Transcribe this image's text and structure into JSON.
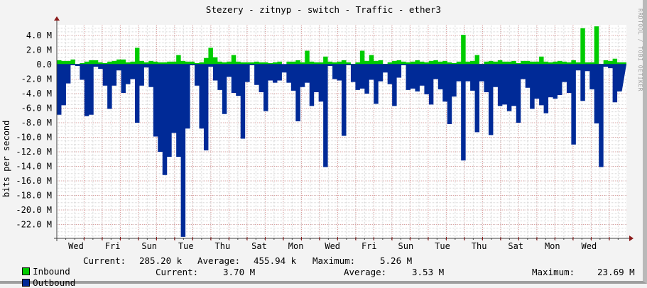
{
  "title": "Stezery - zitnyp - switch - Traffic - ether3",
  "watermark": "RRDTOOL / TOBI OETIKER",
  "colors": {
    "inbound": "#00cc00",
    "outbound": "#002a97",
    "grid_major": "#e0a0a0",
    "grid_minor": "#d8d8d8",
    "axis": "#404040",
    "arrow": "#8b1a1a",
    "background": "#f3f3f3",
    "plot_bg": "#ffffff"
  },
  "legend": {
    "inbound": {
      "label": "Inbound",
      "current_label": "Current:",
      "current": "285.20 k",
      "average_label": "Average:",
      "average": "455.94 k",
      "maximum_label": "Maximum:",
      "maximum": "5.26 M"
    },
    "outbound": {
      "label": "Outbound",
      "current_label": "Current:",
      "current": "3.70 M",
      "average_label": "Average:",
      "average": "3.53 M",
      "maximum_label": "Maximum:",
      "maximum": "23.69 M"
    }
  },
  "chart_data": {
    "type": "area",
    "title": "Stezery - zitnyp - switch - Traffic - ether3",
    "xlabel": "",
    "ylabel": "bits per second",
    "ylim": [
      -23.5,
      5.5
    ],
    "y_ticks": [
      "4.0 M",
      "2.0 M",
      "0.0",
      "-2.0 M",
      "-4.0 M",
      "-6.0 M",
      "-8.0 M",
      "-10.0 M",
      "-12.0 M",
      "-14.0 M",
      "-16.0 M",
      "-18.0 M",
      "-20.0 M",
      "-22.0 M"
    ],
    "y_tick_values": [
      4,
      2,
      0,
      -2,
      -4,
      -6,
      -8,
      -10,
      -12,
      -14,
      -16,
      -18,
      -20,
      -22
    ],
    "x_ticks": [
      "Wed",
      "Fri",
      "Sun",
      "Tue",
      "Thu",
      "Sat",
      "Mon",
      "Wed",
      "Fri",
      "Sun",
      "Tue",
      "Thu",
      "Sat",
      "Mon",
      "Wed"
    ],
    "grid": true,
    "legend_position": "bottom",
    "units": "M bits/s",
    "series": [
      {
        "name": "Inbound",
        "color": "#00cc00",
        "values": [
          0.6,
          0.5,
          0.5,
          0.7,
          0.1,
          0.2,
          0.4,
          0.6,
          0.6,
          0.3,
          0.2,
          0.4,
          0.5,
          0.7,
          0.7,
          0.3,
          0.4,
          2.3,
          0.5,
          0.3,
          0.5,
          0.4,
          0.3,
          0.3,
          0.4,
          0.4,
          1.3,
          0.5,
          0.4,
          0.4,
          0.2,
          0.3,
          0.9,
          2.3,
          1.0,
          0.4,
          0.3,
          0.4,
          1.3,
          0.4,
          0.3,
          0.3,
          0.3,
          0.4,
          0.3,
          0.3,
          0.2,
          0.3,
          0.4,
          0.0,
          0.4,
          0.4,
          0.6,
          0.3,
          1.9,
          0.4,
          0.3,
          0.3,
          1.1,
          0.4,
          0.3,
          0.4,
          0.6,
          0.3,
          0.1,
          0.3,
          1.9,
          0.5,
          1.3,
          0.5,
          0.6,
          0.1,
          0.3,
          0.5,
          0.6,
          0.4,
          0.3,
          0.4,
          0.6,
          0.4,
          0.3,
          0.5,
          0.6,
          0.4,
          0.5,
          0.3,
          0.2,
          0.4,
          4.1,
          0.4,
          0.5,
          1.3,
          0.1,
          0.4,
          0.5,
          0.4,
          0.6,
          0.4,
          0.4,
          0.5,
          0.2,
          0.5,
          0.5,
          0.4,
          0.4,
          1.1,
          0.4,
          0.3,
          0.4,
          0.5,
          0.4,
          0.3,
          0.6,
          0.3,
          5.0,
          0.3,
          0.3,
          5.26,
          0.1,
          0.6,
          0.5,
          0.8,
          0.3,
          0.3
        ],
        "note": "approximate per-step samples read from pixels"
      },
      {
        "name": "Outbound",
        "color": "#002a97",
        "values": [
          -6.9,
          -5.6,
          -2.6,
          -0.1,
          -0.2,
          -2.1,
          -7.1,
          -6.9,
          -0.3,
          -0.6,
          -2.9,
          -6.1,
          -2.9,
          -0.8,
          -3.9,
          -2.7,
          -2.0,
          -8.0,
          -2.9,
          -0.4,
          -3.1,
          -9.9,
          -12.0,
          -15.2,
          -12.7,
          -9.4,
          -12.7,
          -23.7,
          -8.8,
          -0.1,
          -2.9,
          -8.8,
          -11.8,
          -0.3,
          -2.2,
          -3.5,
          -6.8,
          -1.7,
          -3.9,
          -4.3,
          -10.2,
          -2.4,
          -0.1,
          -2.8,
          -3.8,
          -6.4,
          -2.2,
          -2.5,
          -2.2,
          -1.1,
          -2.5,
          -3.6,
          -7.8,
          -3.1,
          -2.5,
          -5.7,
          -3.8,
          -5.1,
          -14.1,
          -0.2,
          -2.0,
          -2.2,
          -9.8,
          -0.1,
          -2.4,
          -3.5,
          -3.3,
          -4.0,
          -2.1,
          -5.4,
          -2.3,
          -1.1,
          -2.7,
          -5.7,
          -1.8,
          -0.1,
          -3.5,
          -3.3,
          -3.7,
          -2.9,
          -4.1,
          -5.5,
          -2.0,
          -3.4,
          -5.1,
          -8.2,
          -4.4,
          -2.3,
          -13.2,
          -2.3,
          -3.6,
          -9.3,
          -2.3,
          -3.8,
          -9.7,
          -3.1,
          -5.7,
          -5.5,
          -6.4,
          -5.7,
          -8.0,
          -2.0,
          -3.2,
          -6.1,
          -4.7,
          -5.6,
          -6.7,
          -4.5,
          -4.7,
          -4.2,
          -2.4,
          -3.9,
          -11.0,
          -0.8,
          -5.0,
          -0.9,
          -3.4,
          -8.1,
          -14.1,
          -0.3,
          -0.5,
          -5.2,
          -3.7
        ],
        "note": "outbound plotted as negative (mirrored below zero)"
      }
    ],
    "summary": {
      "inbound": {
        "current": 285200,
        "average": 455940,
        "maximum": 5260000
      },
      "outbound": {
        "current": 3700000,
        "average": 3530000,
        "maximum": 23690000
      }
    }
  }
}
